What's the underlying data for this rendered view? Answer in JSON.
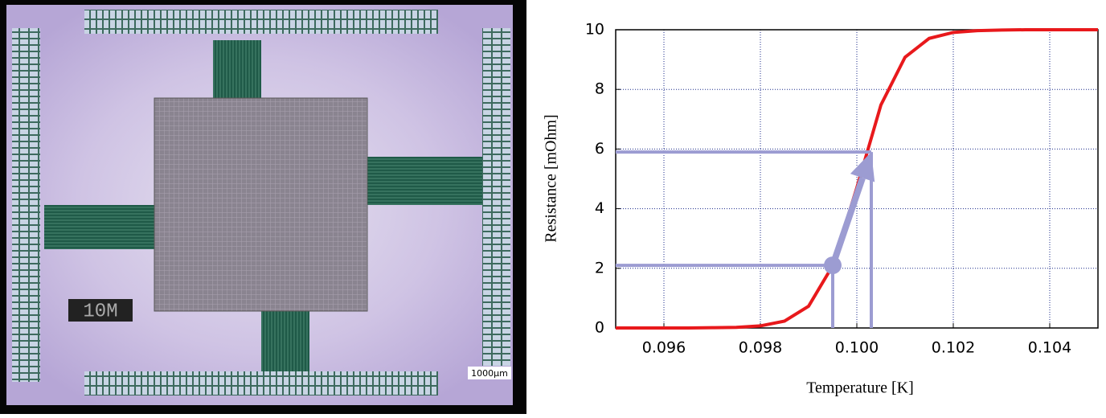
{
  "image": {
    "chip_label": "10M",
    "scale_label": "1000µm"
  },
  "chart_data": {
    "type": "line",
    "x_label": "Temperature [K]",
    "y_label": "Resistance [mOhm]",
    "x": [
      0.095,
      0.0955,
      0.096,
      0.0965,
      0.097,
      0.0975,
      0.098,
      0.0985,
      0.099,
      0.0995,
      0.1,
      0.1005,
      0.101,
      0.1015,
      0.102,
      0.1025,
      0.103,
      0.1035,
      0.104,
      0.1045,
      0.105
    ],
    "series": [
      {
        "color": "#e8191c",
        "values": [
          0,
          0,
          0,
          0,
          0.01,
          0.02,
          0.07,
          0.23,
          0.73,
          2.09,
          4.7,
          7.48,
          9.08,
          9.71,
          9.91,
          9.97,
          9.99,
          10,
          10,
          10,
          10
        ]
      }
    ],
    "xlim": [
      0.095,
      0.105
    ],
    "ylim": [
      0,
      10
    ],
    "xticks": [
      0.096,
      0.098,
      {
        "value": 0.1,
        "label": "0.100"
      },
      0.102,
      0.104
    ],
    "yticks": [
      0,
      2,
      4,
      6,
      8,
      10
    ],
    "grid": true,
    "markers": {
      "color": "#9c9cd2",
      "x": [
        0.0995,
        0.1003
      ],
      "y": [
        2.1,
        5.9
      ]
    }
  }
}
